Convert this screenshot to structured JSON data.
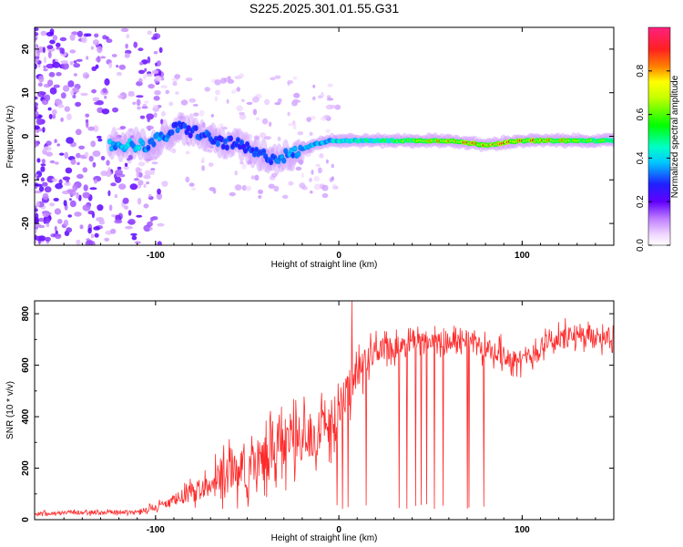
{
  "title": "S225.2025.301.01.55.G31",
  "chart_data": [
    {
      "type": "heatmap",
      "xlabel": "Height of straight line (km)",
      "ylabel": "Frequency (Hz)",
      "xlim": [
        -166,
        150
      ],
      "ylim": [
        -25,
        25
      ],
      "xticks": [
        "-100",
        "0",
        "100"
      ],
      "yticks": [
        "20",
        "10",
        "0",
        "-10",
        "-20"
      ],
      "colorbar": {
        "label": "Normalized spectral amplitude",
        "range": [
          0,
          1
        ],
        "ticks": [
          "0.0",
          "0.2",
          "0.4",
          "0.6",
          "0.8"
        ]
      },
      "ridge": [
        {
          "x": -120,
          "f": -2
        },
        {
          "x": -105,
          "f": -2
        },
        {
          "x": -95,
          "f": 0
        },
        {
          "x": -88,
          "f": 2
        },
        {
          "x": -78,
          "f": 1
        },
        {
          "x": -68,
          "f": -1
        },
        {
          "x": -55,
          "f": -2
        },
        {
          "x": -45,
          "f": -4
        },
        {
          "x": -35,
          "f": -5
        },
        {
          "x": -25,
          "f": -4
        },
        {
          "x": -15,
          "f": -2
        },
        {
          "x": -5,
          "f": -1
        },
        {
          "x": 5,
          "f": -1
        },
        {
          "x": 20,
          "f": -1
        },
        {
          "x": 40,
          "f": -1
        },
        {
          "x": 60,
          "f": -1
        },
        {
          "x": 80,
          "f": -2
        },
        {
          "x": 100,
          "f": -1
        },
        {
          "x": 120,
          "f": -1
        },
        {
          "x": 148,
          "f": -1
        }
      ],
      "ridge_amplitude": [
        {
          "x": -110,
          "a": 0.4
        },
        {
          "x": -85,
          "a": 0.3
        },
        {
          "x": -40,
          "a": 0.3
        },
        {
          "x": 0,
          "a": 0.45
        },
        {
          "x": 30,
          "a": 0.6
        },
        {
          "x": 60,
          "a": 0.85
        },
        {
          "x": 85,
          "a": 0.9
        },
        {
          "x": 110,
          "a": 0.85
        },
        {
          "x": 148,
          "a": 0.6
        }
      ]
    },
    {
      "type": "line",
      "xlabel": "Height of straight line (km)",
      "ylabel": "SNR (10 * v/v)",
      "xlim": [
        -166,
        150
      ],
      "ylim": [
        0,
        850
      ],
      "xticks": [
        "-100",
        "0",
        "100"
      ],
      "yticks": [
        "800",
        "600",
        "400",
        "200",
        "0"
      ],
      "color": "#ff2a2a",
      "envelope": [
        {
          "x": -166,
          "mean": 25,
          "spread": 12
        },
        {
          "x": -110,
          "mean": 30,
          "spread": 15
        },
        {
          "x": -95,
          "mean": 60,
          "spread": 30
        },
        {
          "x": -75,
          "mean": 120,
          "spread": 80
        },
        {
          "x": -60,
          "mean": 200,
          "spread": 130
        },
        {
          "x": -45,
          "mean": 220,
          "spread": 160
        },
        {
          "x": -30,
          "mean": 300,
          "spread": 170
        },
        {
          "x": -15,
          "mean": 330,
          "spread": 160
        },
        {
          "x": 0,
          "mean": 420,
          "spread": 170
        },
        {
          "x": 10,
          "mean": 560,
          "spread": 130
        },
        {
          "x": 20,
          "mean": 660,
          "spread": 80
        },
        {
          "x": 40,
          "mean": 680,
          "spread": 75
        },
        {
          "x": 70,
          "mean": 690,
          "spread": 75
        },
        {
          "x": 90,
          "mean": 640,
          "spread": 80
        },
        {
          "x": 100,
          "mean": 610,
          "spread": 60
        },
        {
          "x": 115,
          "mean": 700,
          "spread": 80
        },
        {
          "x": 150,
          "mean": 720,
          "spread": 80
        }
      ],
      "peak": {
        "x": 7,
        "y": 850
      },
      "dropouts": [
        -1,
        2,
        5,
        15,
        33,
        37,
        42,
        45,
        48,
        52,
        57,
        70,
        71,
        79
      ]
    }
  ]
}
